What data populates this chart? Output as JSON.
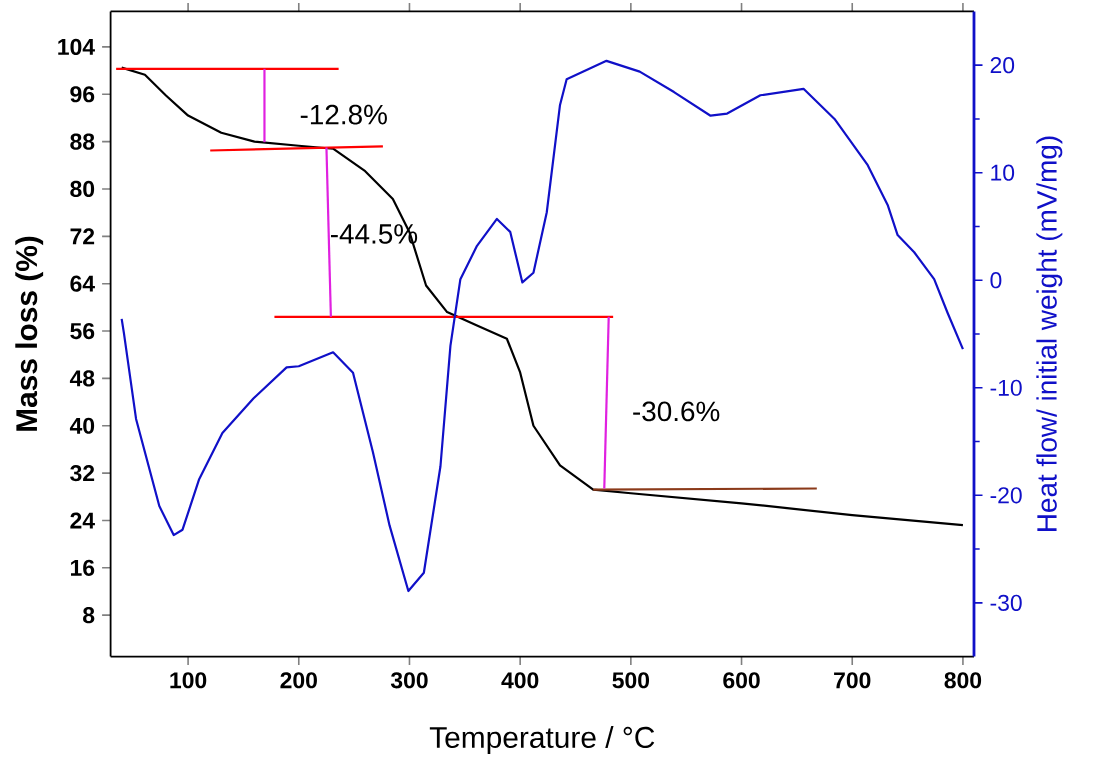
{
  "chart_data": {
    "type": "line",
    "xlabel": "Temperature / °C",
    "ylabel": "Mass loss (%)",
    "y2label": "Heat flow/ initial weight (mV/mg)",
    "xlim": [
      30,
      810
    ],
    "ylim": [
      1,
      110
    ],
    "y2lim": [
      -35,
      25
    ],
    "xticks": [
      100,
      200,
      300,
      400,
      500,
      600,
      700,
      800
    ],
    "yticks": [
      8,
      16,
      24,
      32,
      40,
      48,
      56,
      64,
      72,
      80,
      88,
      96,
      104
    ],
    "y2ticks": [
      -30,
      -20,
      -10,
      0,
      10,
      20
    ],
    "series": [
      {
        "color": "#000000",
        "x": [
          40,
          61,
          80,
          100,
          130,
          160,
          200,
          231,
          260,
          285,
          300,
          315,
          334,
          360,
          388,
          400,
          412,
          436,
          466,
          500,
          600,
          700,
          800
        ],
        "values": [
          100.5,
          99.3,
          95.8,
          92.4,
          89.5,
          88,
          87.3,
          86.8,
          83,
          78.3,
          72.7,
          63.7,
          59.2,
          57,
          54.7,
          49,
          40,
          33.3,
          29.2,
          28.6,
          26.9,
          24.9,
          23.2
        ]
      },
      {
        "color": "#1010c8",
        "axis": "y2",
        "x": [
          40,
          42,
          53,
          74,
          87,
          95,
          110,
          131,
          159,
          189,
          200,
          231,
          249,
          267,
          282,
          299,
          313,
          328,
          337,
          346,
          361,
          379,
          391,
          402,
          412,
          424,
          436,
          442,
          478,
          508,
          539,
          572,
          587,
          617,
          656,
          684,
          714,
          732,
          741,
          756,
          774,
          786,
          800
        ],
        "values": [
          -3.6,
          -4.9,
          -12.9,
          -21,
          -23.7,
          -23.2,
          -18.5,
          -14.2,
          -11,
          -8.1,
          -8,
          -6.7,
          -8.6,
          -16,
          -22.8,
          -28.9,
          -27.2,
          -17.3,
          -6.1,
          0.1,
          3.2,
          5.7,
          4.5,
          -0.2,
          0.7,
          6.3,
          16.3,
          18.7,
          20.4,
          19.4,
          17.5,
          15.3,
          15.5,
          17.2,
          17.8,
          15,
          10.7,
          7,
          4.2,
          2.6,
          0.1,
          -3,
          -6.4
        ]
      },
      {
        "color": "#ff0000",
        "x": [
          35,
          236
        ],
        "values": [
          100.3,
          100.3
        ]
      },
      {
        "color": "#ff0000",
        "x": [
          120,
          276
        ],
        "values": [
          86.5,
          87.2
        ]
      },
      {
        "color": "#ff0000",
        "x": [
          178,
          484
        ],
        "values": [
          58.4,
          58.4
        ]
      },
      {
        "color": "#8b3a1a",
        "x": [
          466,
          668
        ],
        "values": [
          29.2,
          29.4
        ]
      },
      {
        "color": "#e020e0",
        "x": [
          169,
          169
        ],
        "values": [
          100.3,
          87.9
        ]
      },
      {
        "color": "#e020e0",
        "x": [
          225,
          229
        ],
        "values": [
          87,
          58.4
        ]
      },
      {
        "color": "#e020e0",
        "x": [
          480,
          476
        ],
        "values": [
          58.4,
          29.4
        ]
      }
    ],
    "annotations": [
      "-12.8%",
      "-44.5%",
      "-30.6%"
    ]
  }
}
